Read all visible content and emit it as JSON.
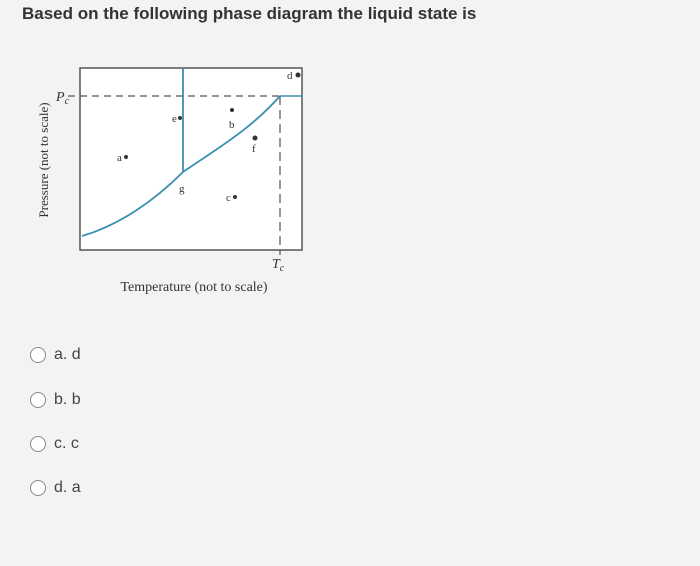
{
  "question": "Based on the following phase diagram the liquid state is",
  "diagram": {
    "y_axis_label": "Pressure (not to scale)",
    "x_axis_label": "Temperature (not to scale)",
    "pc": {
      "symbol": "P",
      "subscript": "c"
    },
    "tc": {
      "symbol": "T",
      "subscript": "c"
    },
    "points": [
      "a",
      "b",
      "c",
      "d",
      "e",
      "f",
      "g"
    ]
  },
  "options": [
    "a. d",
    "b. b",
    "c. c",
    "d. a"
  ]
}
